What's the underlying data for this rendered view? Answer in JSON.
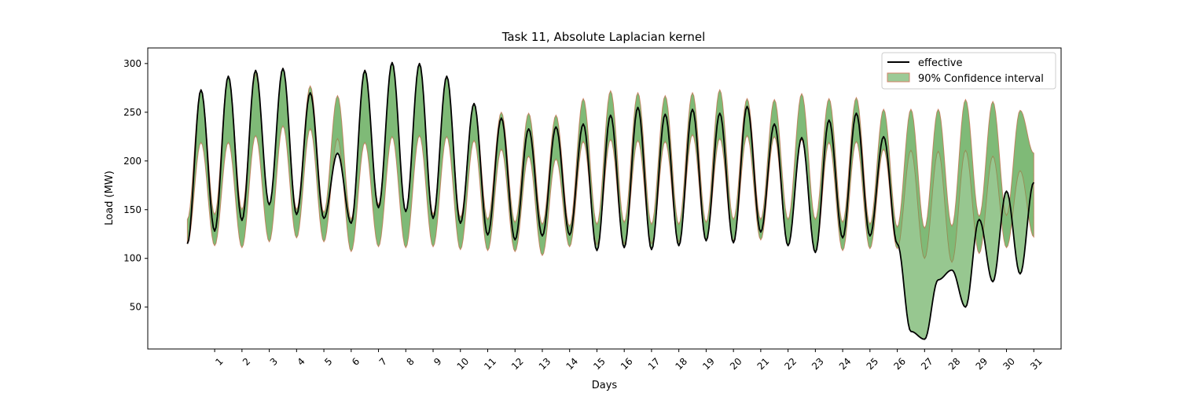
{
  "chart_data": {
    "type": "line",
    "title": "Task 11, Absolute Laplacian kernel",
    "xlabel": "Days",
    "ylabel": "Load (MW)",
    "xlim": [
      -1.45,
      32.0
    ],
    "ylim": [
      7,
      316
    ],
    "x_ticks": [
      1,
      2,
      3,
      4,
      5,
      6,
      7,
      8,
      9,
      10,
      11,
      12,
      13,
      14,
      15,
      16,
      17,
      18,
      19,
      20,
      21,
      22,
      23,
      24,
      25,
      26,
      27,
      28,
      29,
      30,
      31
    ],
    "x_tick_labels": [
      "1",
      "2",
      "3",
      "4",
      "5",
      "6",
      "7",
      "8",
      "9",
      "10",
      "11",
      "12",
      "13",
      "14",
      "15",
      "16",
      "17",
      "18",
      "19",
      "20",
      "21",
      "22",
      "23",
      "24",
      "25",
      "26",
      "27",
      "28",
      "29",
      "30",
      "31"
    ],
    "y_ticks": [
      50,
      100,
      150,
      200,
      250,
      300
    ],
    "y_tick_labels": [
      "50",
      "100",
      "150",
      "200",
      "250",
      "300"
    ],
    "grid": false,
    "legend_position": "top-right",
    "colors": {
      "effective": "#000000",
      "interval_fill": "#4a9e3f",
      "interval_edge": "#d4836a"
    },
    "series": [
      {
        "name": "effective",
        "kind": "line",
        "x": [
          0,
          0.5,
          1,
          1.5,
          2,
          2.5,
          3,
          3.5,
          4,
          4.5,
          5,
          5.5,
          6,
          6.5,
          7,
          7.5,
          8,
          8.5,
          9,
          9.5,
          10,
          10.5,
          11,
          11.5,
          12,
          12.5,
          13,
          13.5,
          14,
          14.5,
          15,
          15.5,
          16,
          16.5,
          17,
          17.5,
          18,
          18.5,
          19,
          19.5,
          20,
          20.5,
          21,
          21.5,
          22,
          22.5,
          23,
          23.5,
          24,
          24.5,
          25,
          25.5,
          26,
          26.5,
          27,
          27.5,
          28,
          28.5,
          29,
          29.5,
          30,
          30.5,
          31
        ],
        "y": [
          115,
          273,
          128,
          287,
          139,
          293,
          155,
          295,
          145,
          270,
          141,
          208,
          136,
          293,
          152,
          301,
          148,
          300,
          141,
          287,
          136,
          259,
          124,
          244,
          119,
          233,
          123,
          235,
          124,
          238,
          108,
          247,
          111,
          255,
          109,
          248,
          113,
          253,
          118,
          249,
          116,
          256,
          127,
          238,
          113,
          224,
          106,
          242,
          121,
          249,
          123,
          225,
          115,
          25,
          17,
          78,
          88,
          50,
          140,
          76,
          169,
          84,
          178
        ]
      },
      {
        "name": "90% Confidence interval",
        "kind": "band",
        "x": [
          0,
          0.5,
          1,
          1.5,
          2,
          2.5,
          3,
          3.5,
          4,
          4.5,
          5,
          5.5,
          6,
          6.5,
          7,
          7.5,
          8,
          8.5,
          9,
          9.5,
          10,
          10.5,
          11,
          11.5,
          12,
          12.5,
          13,
          13.5,
          14,
          14.5,
          15,
          15.5,
          16,
          16.5,
          17,
          17.5,
          18,
          18.5,
          19,
          19.5,
          20,
          20.5,
          21,
          21.5,
          22,
          22.5,
          23,
          23.5,
          24,
          24.5,
          25,
          25.5,
          26,
          26.5,
          27,
          27.5,
          28,
          28.5,
          29,
          29.5,
          30,
          30.5,
          31
        ],
        "upper": [
          140,
          273,
          145,
          287,
          150,
          289,
          155,
          295,
          150,
          277,
          147,
          267,
          140,
          293,
          155,
          301,
          148,
          300,
          145,
          287,
          142,
          259,
          140,
          250,
          137,
          249,
          135,
          247,
          133,
          264,
          135,
          272,
          137,
          270,
          135,
          267,
          135,
          270,
          137,
          273,
          140,
          264,
          140,
          263,
          140,
          269,
          140,
          264,
          137,
          265,
          135,
          253,
          132,
          253,
          131,
          253,
          133,
          263,
          143,
          261,
          144,
          252,
          208
        ],
        "lower": [
          115,
          219,
          113,
          219,
          111,
          226,
          117,
          236,
          121,
          233,
          117,
          223,
          107,
          219,
          112,
          225,
          111,
          226,
          112,
          225,
          109,
          221,
          108,
          212,
          107,
          205,
          103,
          202,
          112,
          220,
          114,
          222,
          115,
          221,
          115,
          220,
          117,
          227,
          119,
          223,
          118,
          226,
          119,
          225,
          113,
          222,
          106,
          219,
          108,
          220,
          110,
          212,
          110,
          211,
          100,
          210,
          96,
          211,
          105,
          205,
          111,
          190,
          122
        ]
      }
    ]
  }
}
